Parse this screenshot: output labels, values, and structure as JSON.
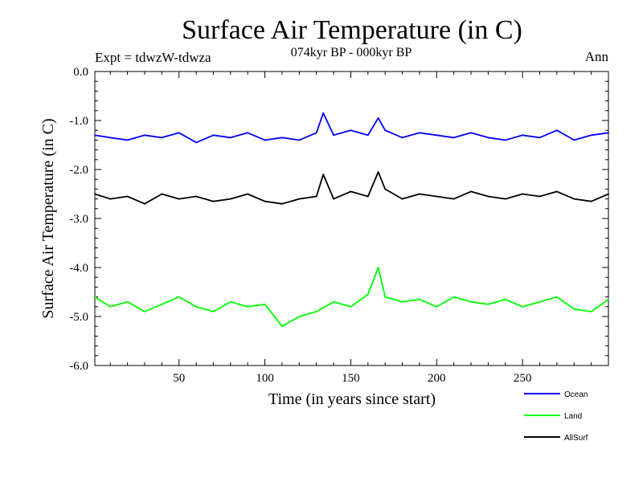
{
  "chart_data": {
    "type": "line",
    "title": "Surface Air Temperature (in C)",
    "subtitle": "074kyr BP - 000kyr BP",
    "left_label": "Expt = tdwzW-tdwza",
    "right_label": "Ann",
    "xlabel": "Time (in years since start)",
    "ylabel": "Surface Air Temperature (in C)",
    "xlim": [
      1,
      300
    ],
    "ylim": [
      -6.0,
      0.0
    ],
    "x_ticks": [
      50,
      100,
      150,
      200,
      250
    ],
    "x_tick_labels": [
      "50",
      "100",
      "150",
      "200",
      "250"
    ],
    "y_ticks": [
      0,
      -1,
      -2,
      -3,
      -4,
      -5,
      -6
    ],
    "y_tick_labels": [
      "0.0",
      "-1.0",
      "-2.0",
      "-3.0",
      "-4.0",
      "-5.0",
      "-6.0"
    ],
    "legend_position": "bottom-right",
    "series": [
      {
        "name": "Ocean",
        "color": "#0000ff",
        "x": [
          1,
          10,
          20,
          30,
          40,
          50,
          60,
          70,
          80,
          90,
          100,
          110,
          120,
          130,
          134,
          140,
          150,
          160,
          166,
          170,
          180,
          190,
          200,
          210,
          220,
          230,
          240,
          250,
          260,
          270,
          280,
          290,
          300
        ],
        "values": [
          -1.3,
          -1.35,
          -1.4,
          -1.3,
          -1.35,
          -1.25,
          -1.45,
          -1.3,
          -1.35,
          -1.25,
          -1.4,
          -1.35,
          -1.4,
          -1.25,
          -0.85,
          -1.3,
          -1.2,
          -1.3,
          -0.95,
          -1.2,
          -1.35,
          -1.25,
          -1.3,
          -1.35,
          -1.25,
          -1.35,
          -1.4,
          -1.3,
          -1.35,
          -1.2,
          -1.4,
          -1.3,
          -1.25
        ]
      },
      {
        "name": "Land",
        "color": "#00ff00",
        "x": [
          1,
          10,
          20,
          30,
          40,
          50,
          60,
          70,
          80,
          90,
          100,
          110,
          120,
          130,
          140,
          150,
          160,
          166,
          170,
          180,
          190,
          200,
          210,
          220,
          230,
          240,
          250,
          260,
          270,
          280,
          290,
          300
        ],
        "values": [
          -4.6,
          -4.8,
          -4.7,
          -4.9,
          -4.75,
          -4.6,
          -4.8,
          -4.9,
          -4.7,
          -4.8,
          -4.75,
          -5.2,
          -5.0,
          -4.9,
          -4.7,
          -4.8,
          -4.55,
          -4.0,
          -4.6,
          -4.7,
          -4.65,
          -4.8,
          -4.6,
          -4.7,
          -4.75,
          -4.65,
          -4.8,
          -4.7,
          -4.6,
          -4.85,
          -4.9,
          -4.65
        ]
      },
      {
        "name": "AllSurf",
        "color": "#000000",
        "x": [
          1,
          10,
          20,
          30,
          40,
          50,
          60,
          70,
          80,
          90,
          100,
          110,
          120,
          130,
          134,
          140,
          150,
          160,
          166,
          170,
          180,
          190,
          200,
          210,
          220,
          230,
          240,
          250,
          260,
          270,
          280,
          290,
          300
        ],
        "values": [
          -2.5,
          -2.6,
          -2.55,
          -2.7,
          -2.5,
          -2.6,
          -2.55,
          -2.65,
          -2.6,
          -2.5,
          -2.65,
          -2.7,
          -2.6,
          -2.55,
          -2.1,
          -2.6,
          -2.45,
          -2.55,
          -2.05,
          -2.4,
          -2.6,
          -2.5,
          -2.55,
          -2.6,
          -2.45,
          -2.55,
          -2.6,
          -2.5,
          -2.55,
          -2.45,
          -2.6,
          -2.65,
          -2.5
        ]
      }
    ]
  }
}
